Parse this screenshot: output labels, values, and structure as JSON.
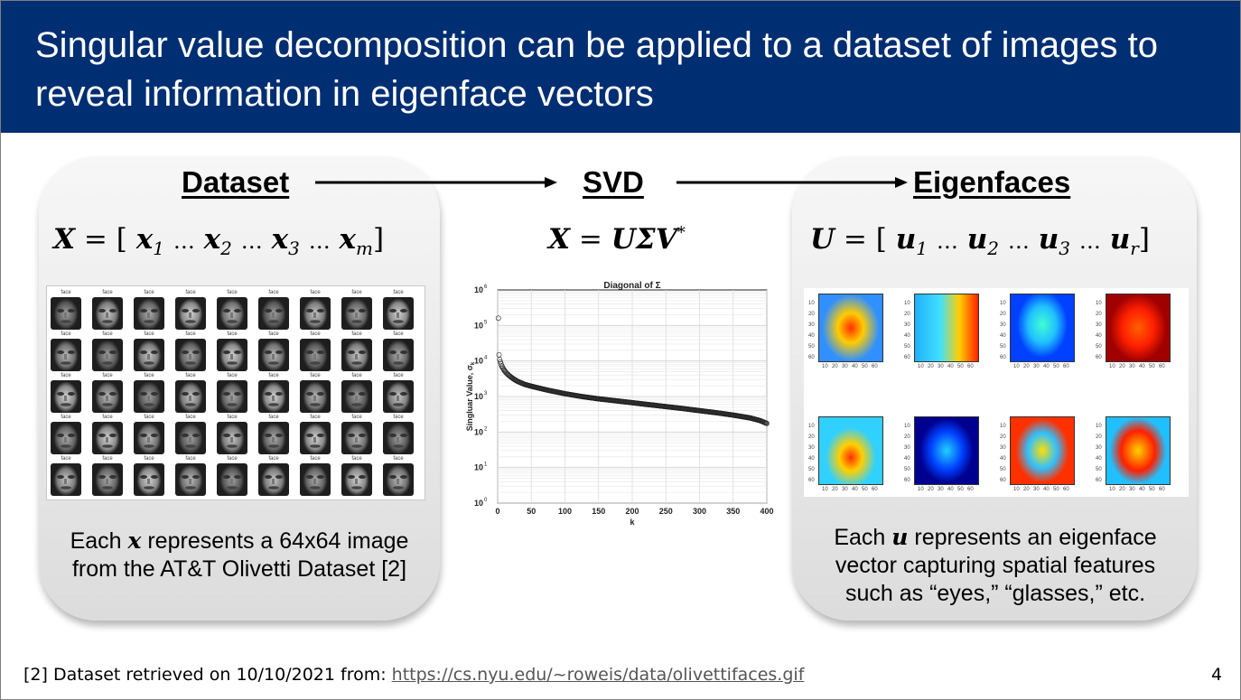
{
  "title": "Singular value decomposition can be applied to a dataset of images to reveal information in eigenface vectors",
  "dataset": {
    "heading": "Dataset",
    "equation": {
      "lhs": "X",
      "eq": "=",
      "open": "[",
      "close": "]",
      "terms": [
        {
          "v": "x",
          "s": "1"
        },
        {
          "v": "x",
          "s": "2"
        },
        {
          "v": "x",
          "s": "3"
        },
        {
          "v": "x",
          "s": "m"
        }
      ],
      "sep": "…"
    },
    "caption_pre": "Each",
    "caption_var": "x",
    "caption_post": "represents a 64x64 image",
    "caption_line2": "from the AT&T Olivetti Dataset [2]",
    "face_label": "face"
  },
  "svd": {
    "heading": "SVD",
    "equation": {
      "lhs": "X",
      "eq": "=",
      "rhs": "UΣV",
      "sup": "*"
    }
  },
  "eigenfaces": {
    "heading": "Eigenfaces",
    "equation": {
      "lhs": "U",
      "eq": "=",
      "open": "[",
      "close": "]",
      "terms": [
        {
          "v": "u",
          "s": "1"
        },
        {
          "v": "u",
          "s": "2"
        },
        {
          "v": "u",
          "s": "3"
        },
        {
          "v": "u",
          "s": "r"
        }
      ],
      "sep": "…"
    },
    "caption_pre": "Each",
    "caption_var": "u",
    "caption_post": "represents an eigenface",
    "caption_line2": "vector capturing spatial features",
    "caption_line3": "such as “eyes,” “glasses,” etc.",
    "tick_labels": [
      "10",
      "20",
      "30",
      "40",
      "50",
      "60"
    ]
  },
  "chart_data": {
    "type": "scatter",
    "title": "Diagonal of Σ",
    "xlabel": "k",
    "ylabel": "Singluar Value, σ",
    "ylabel_sub": "k",
    "yscale": "log",
    "xlim": [
      0,
      400
    ],
    "ylim": [
      1,
      1000000
    ],
    "xticks": [
      "0",
      "50",
      "100",
      "150",
      "200",
      "250",
      "300",
      "350",
      "400"
    ],
    "yticks": [
      {
        "base": "10",
        "exp": "0"
      },
      {
        "base": "10",
        "exp": "1"
      },
      {
        "base": "10",
        "exp": "2"
      },
      {
        "base": "10",
        "exp": "3"
      },
      {
        "base": "10",
        "exp": "4"
      },
      {
        "base": "10",
        "exp": "5"
      },
      {
        "base": "10",
        "exp": "6"
      }
    ],
    "grid": true,
    "series": [
      {
        "x": [
          1,
          2,
          3,
          4,
          5,
          6,
          8,
          10,
          12,
          15,
          20,
          25,
          30,
          40,
          50,
          60,
          75,
          100,
          125,
          150,
          175,
          200,
          225,
          250,
          275,
          300,
          325,
          350,
          375,
          390,
          400
        ],
        "y": [
          160000,
          15000,
          11000,
          9500,
          8200,
          7300,
          6200,
          5400,
          4800,
          4200,
          3500,
          3000,
          2650,
          2200,
          1950,
          1750,
          1500,
          1200,
          1000,
          860,
          760,
          670,
          590,
          520,
          460,
          400,
          350,
          300,
          250,
          210,
          175
        ]
      }
    ]
  },
  "footnote": {
    "text": "[2] Dataset retrieved on 10/10/2021 from: ",
    "link": "https://cs.nyu.edu/~roweis/data/olivettifaces.gif"
  },
  "page_number": "4",
  "colors": {
    "title_bg": "#002e72",
    "title_text": "#ffffff"
  }
}
